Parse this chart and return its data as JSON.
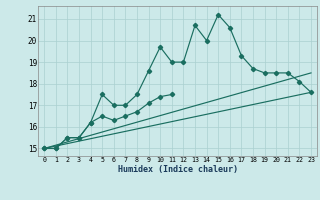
{
  "xlabel": "Humidex (Indice chaleur)",
  "xlim": [
    -0.5,
    23.5
  ],
  "ylim": [
    14.65,
    21.6
  ],
  "yticks": [
    15,
    16,
    17,
    18,
    19,
    20,
    21
  ],
  "xticks": [
    0,
    1,
    2,
    3,
    4,
    5,
    6,
    7,
    8,
    9,
    10,
    11,
    12,
    13,
    14,
    15,
    16,
    17,
    18,
    19,
    20,
    21,
    22,
    23
  ],
  "bg_color": "#cce9e9",
  "grid_color": "#aad0d0",
  "line_color": "#1a6e60",
  "curve1_x": [
    0,
    1,
    2,
    3,
    4,
    5,
    6,
    7,
    8,
    9,
    10,
    11,
    12,
    13,
    14,
    15,
    16,
    17,
    18,
    19,
    20,
    21,
    22,
    23
  ],
  "curve1_y": [
    15.0,
    15.0,
    15.5,
    15.5,
    16.2,
    17.5,
    17.0,
    17.0,
    17.5,
    18.6,
    19.7,
    19.0,
    19.0,
    20.7,
    20.0,
    21.2,
    20.6,
    19.3,
    18.7,
    18.5,
    18.5,
    18.5,
    18.1,
    17.6
  ],
  "curve2_x": [
    0,
    1,
    2,
    3,
    4,
    5,
    6,
    7,
    8,
    9,
    10,
    11
  ],
  "curve2_y": [
    15.0,
    15.0,
    15.5,
    15.5,
    16.2,
    16.5,
    16.3,
    16.5,
    16.7,
    17.1,
    17.4,
    17.5
  ],
  "line3_x": [
    0,
    23
  ],
  "line3_y": [
    15.0,
    18.5
  ],
  "line4_x": [
    0,
    23
  ],
  "line4_y": [
    15.0,
    17.6
  ]
}
